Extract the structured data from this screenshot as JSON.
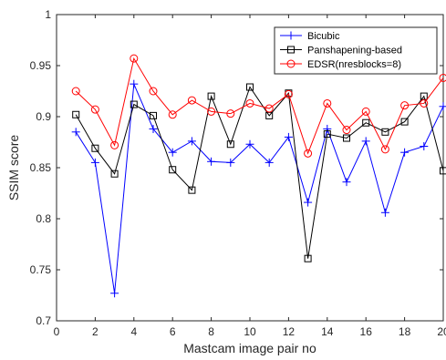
{
  "chart_data": {
    "type": "line",
    "title": "",
    "xlabel": "Mastcam image pair no",
    "ylabel": "SSIM score",
    "xlim": [
      0,
      20
    ],
    "ylim": [
      0.7,
      1.0
    ],
    "xticks": [
      0,
      2,
      4,
      6,
      8,
      10,
      12,
      14,
      16,
      18,
      20
    ],
    "yticks": [
      0.7,
      0.75,
      0.8,
      0.85,
      0.9,
      0.95,
      1
    ],
    "ytick_labels": [
      "0.7",
      "0.75",
      "0.8",
      "0.85",
      "0.9",
      "0.95",
      "1"
    ],
    "grid": false,
    "legend_position": "top-right",
    "x": [
      1,
      2,
      3,
      4,
      5,
      6,
      7,
      8,
      9,
      10,
      11,
      12,
      13,
      14,
      15,
      16,
      17,
      18,
      19,
      20
    ],
    "series": [
      {
        "name": "Bicubic",
        "color": "#0000ff",
        "marker": "plus",
        "values": [
          0.885,
          0.855,
          0.727,
          0.932,
          0.888,
          0.865,
          0.876,
          0.856,
          0.855,
          0.873,
          0.855,
          0.88,
          0.816,
          0.888,
          0.836,
          0.876,
          0.806,
          0.865,
          0.871,
          0.91
        ]
      },
      {
        "name": "Panshapening-based",
        "color": "#000000",
        "marker": "square",
        "values": [
          0.902,
          0.869,
          0.844,
          0.912,
          0.901,
          0.848,
          0.828,
          0.92,
          0.873,
          0.929,
          0.901,
          0.923,
          0.761,
          0.883,
          0.879,
          0.894,
          0.885,
          0.895,
          0.92,
          0.847
        ]
      },
      {
        "name": "EDSR(nresblocks=8)",
        "color": "#ff0000",
        "marker": "circle",
        "values": [
          0.925,
          0.907,
          0.872,
          0.957,
          0.925,
          0.902,
          0.916,
          0.905,
          0.903,
          0.913,
          0.908,
          0.922,
          0.864,
          0.913,
          0.887,
          0.905,
          0.868,
          0.911,
          0.913,
          0.938
        ]
      }
    ]
  }
}
